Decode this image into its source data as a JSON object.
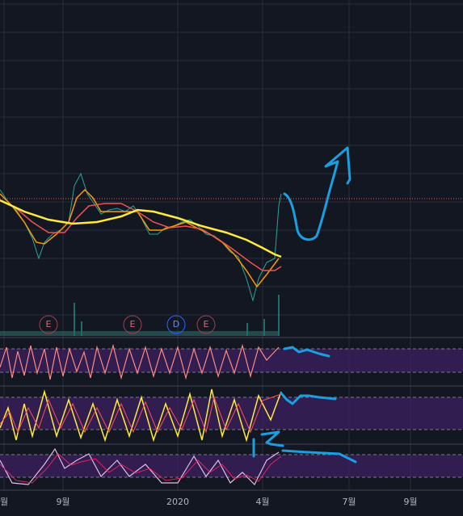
{
  "x_axis_labels": [
    "월",
    "9월",
    "2020",
    "4월",
    "7월",
    "9월"
  ],
  "event_markers": [
    "E",
    "E",
    "D",
    "E"
  ]
}
